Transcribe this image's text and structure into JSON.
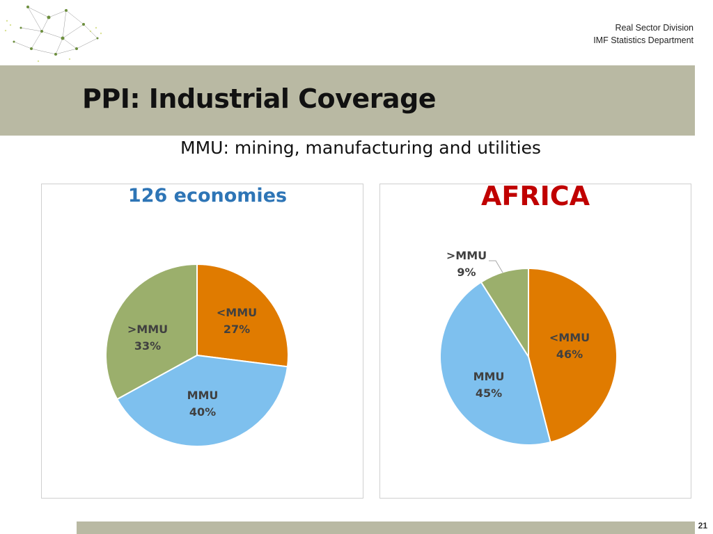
{
  "header": {
    "division": "Real Sector Division",
    "department": "IMF Statistics Department"
  },
  "slide": {
    "title": "PPI: Industrial Coverage",
    "subtitle": "MMU: mining, manufacturing and utilities",
    "page_number": "21"
  },
  "colors": {
    "lt_mmu": "#e07b00",
    "mmu": "#7ec0ee",
    "gt_mmu": "#9baf6c",
    "band": "#b9b9a3",
    "left_title": "#2e75b6",
    "right_title": "#c00000"
  },
  "chart_data": [
    {
      "type": "pie",
      "title": "126 economies",
      "series": [
        {
          "name": "<MMU",
          "value": 27,
          "label": "27%"
        },
        {
          "name": "MMU",
          "value": 40,
          "label": "40%"
        },
        {
          "name": ">MMU",
          "value": 33,
          "label": "33%"
        }
      ]
    },
    {
      "type": "pie",
      "title": "AFRICA",
      "series": [
        {
          "name": "<MMU",
          "value": 46,
          "label": "46%"
        },
        {
          "name": "MMU",
          "value": 45,
          "label": "45%"
        },
        {
          "name": ">MMU",
          "value": 9,
          "label": "9%"
        }
      ]
    }
  ]
}
